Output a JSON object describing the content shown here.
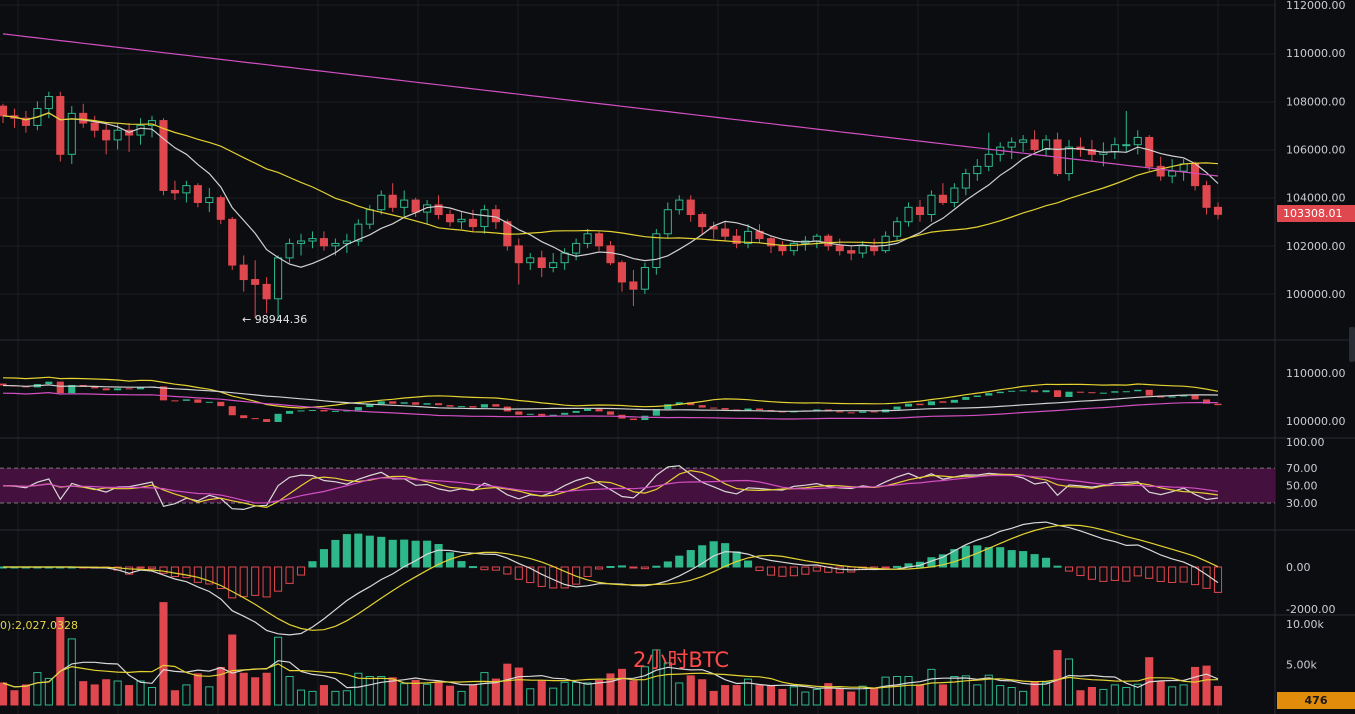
{
  "chart_data": {
    "type": "candlestick",
    "timeframe_watermark": "2小时BTC",
    "low_marker": "← 98944.36",
    "last_price": "103308.01",
    "volume_legend": "0):2,027.0328",
    "volume_last": "476",
    "price_axis": [
      "112000.00",
      "110000.00",
      "108000.00",
      "106000.00",
      "104000.00",
      "102000.00",
      "100000.00"
    ],
    "overlay_axis": [
      "110000.00",
      "100000.00"
    ],
    "rsi_axis": [
      "100.00",
      "70.00",
      "50.00",
      "30.00"
    ],
    "macd_axis": [
      "0.00",
      "-2000.00"
    ],
    "volume_axis": [
      "10.00k",
      "5.00k"
    ],
    "colors": {
      "up": "#2eb88a",
      "down": "#e0484f",
      "ma_fast": "#d0d0d0",
      "ma_mid": "#e3d232",
      "ma_slow": "#d14fc2",
      "rsi_band": "#4a1142"
    },
    "candles_ohlc": [
      [
        107800,
        107900,
        107100,
        107400
      ],
      [
        107400,
        107700,
        106900,
        107300
      ],
      [
        107300,
        107600,
        106700,
        107000
      ],
      [
        107000,
        108000,
        106800,
        107700
      ],
      [
        107700,
        108400,
        107300,
        108200
      ],
      [
        108200,
        108400,
        105500,
        105800
      ],
      [
        105800,
        107800,
        105400,
        107500
      ],
      [
        107500,
        107900,
        106900,
        107100
      ],
      [
        107100,
        107400,
        106500,
        106800
      ],
      [
        106800,
        107100,
        105800,
        106400
      ],
      [
        106400,
        107100,
        106000,
        106800
      ],
      [
        106800,
        107100,
        105900,
        106600
      ],
      [
        106600,
        107300,
        106200,
        107000
      ],
      [
        107000,
        107400,
        106500,
        107200
      ],
      [
        107200,
        107300,
        104100,
        104300
      ],
      [
        104300,
        104700,
        103900,
        104200
      ],
      [
        104200,
        104700,
        103800,
        104500
      ],
      [
        104500,
        104600,
        103600,
        103800
      ],
      [
        103800,
        104400,
        103400,
        104000
      ],
      [
        104000,
        104100,
        102900,
        103100
      ],
      [
        103100,
        103200,
        101000,
        101200
      ],
      [
        101200,
        101600,
        100100,
        100600
      ],
      [
        100600,
        101400,
        99000,
        100400
      ],
      [
        100400,
        100700,
        99200,
        99800
      ],
      [
        99800,
        101600,
        98944,
        101500
      ],
      [
        101500,
        102300,
        101300,
        102100
      ],
      [
        102100,
        102500,
        101600,
        102200
      ],
      [
        102200,
        102600,
        101900,
        102300
      ],
      [
        102300,
        102600,
        101800,
        102000
      ],
      [
        102000,
        102300,
        101600,
        102100
      ],
      [
        102100,
        102500,
        101700,
        102200
      ],
      [
        102200,
        103100,
        102000,
        102900
      ],
      [
        102900,
        103700,
        102700,
        103500
      ],
      [
        103500,
        104300,
        103300,
        104100
      ],
      [
        104100,
        104600,
        103400,
        103600
      ],
      [
        103600,
        104300,
        103200,
        103900
      ],
      [
        103900,
        104000,
        103200,
        103400
      ],
      [
        103400,
        103900,
        102900,
        103700
      ],
      [
        103700,
        104100,
        103100,
        103300
      ],
      [
        103300,
        103500,
        102800,
        103000
      ],
      [
        103000,
        103400,
        102700,
        103100
      ],
      [
        103100,
        103500,
        102600,
        102800
      ],
      [
        102800,
        103700,
        102500,
        103500
      ],
      [
        103500,
        103700,
        102700,
        103000
      ],
      [
        103000,
        103100,
        101800,
        102000
      ],
      [
        102000,
        102300,
        100400,
        101300
      ],
      [
        101300,
        101700,
        101000,
        101500
      ],
      [
        101500,
        101800,
        100700,
        101100
      ],
      [
        101100,
        101700,
        100900,
        101300
      ],
      [
        101300,
        101900,
        101000,
        101700
      ],
      [
        101700,
        102300,
        101400,
        102100
      ],
      [
        102100,
        102700,
        101900,
        102500
      ],
      [
        102500,
        102600,
        101800,
        102000
      ],
      [
        102000,
        102200,
        101200,
        101300
      ],
      [
        101300,
        101400,
        100100,
        100500
      ],
      [
        100500,
        101000,
        99500,
        100200
      ],
      [
        100200,
        101300,
        100000,
        101100
      ],
      [
        101100,
        102700,
        100800,
        102500
      ],
      [
        102500,
        103800,
        102300,
        103500
      ],
      [
        103500,
        104100,
        103300,
        103900
      ],
      [
        103900,
        104100,
        103000,
        103300
      ],
      [
        103300,
        103400,
        102500,
        102800
      ],
      [
        102800,
        103000,
        102300,
        102700
      ],
      [
        102700,
        103000,
        102200,
        102400
      ],
      [
        102400,
        102700,
        101900,
        102100
      ],
      [
        102100,
        102900,
        101900,
        102600
      ],
      [
        102600,
        102900,
        102100,
        102300
      ],
      [
        102300,
        102400,
        101700,
        102000
      ],
      [
        102000,
        102200,
        101600,
        101800
      ],
      [
        101800,
        102200,
        101600,
        102100
      ],
      [
        102100,
        102400,
        101800,
        102200
      ],
      [
        102200,
        102500,
        101900,
        102400
      ],
      [
        102400,
        102500,
        101800,
        102000
      ],
      [
        102000,
        102300,
        101600,
        101800
      ],
      [
        101800,
        102000,
        101400,
        101700
      ],
      [
        101700,
        102200,
        101500,
        102000
      ],
      [
        102000,
        102300,
        101600,
        101800
      ],
      [
        101800,
        102600,
        101700,
        102400
      ],
      [
        102400,
        103200,
        102200,
        103000
      ],
      [
        103000,
        103800,
        102800,
        103600
      ],
      [
        103600,
        103900,
        103000,
        103300
      ],
      [
        103300,
        104300,
        103000,
        104100
      ],
      [
        104100,
        104600,
        103700,
        103800
      ],
      [
        103800,
        104600,
        103600,
        104400
      ],
      [
        104400,
        105200,
        104100,
        105000
      ],
      [
        105000,
        105600,
        104700,
        105300
      ],
      [
        105300,
        106700,
        105100,
        105800
      ],
      [
        105800,
        106300,
        105500,
        106100
      ],
      [
        106100,
        106500,
        105600,
        106300
      ],
      [
        106300,
        106600,
        105900,
        106400
      ],
      [
        106400,
        106800,
        105900,
        106000
      ],
      [
        106000,
        106600,
        105700,
        106400
      ],
      [
        106400,
        106700,
        104900,
        105000
      ],
      [
        105000,
        106400,
        104700,
        106100
      ],
      [
        106100,
        106500,
        105700,
        106000
      ],
      [
        106000,
        106400,
        105500,
        105800
      ],
      [
        105800,
        106300,
        105300,
        105900
      ],
      [
        105900,
        106500,
        105600,
        106200
      ],
      [
        106200,
        107600,
        105900,
        106200
      ],
      [
        106200,
        106800,
        105800,
        106500
      ],
      [
        106500,
        106600,
        105100,
        105300
      ],
      [
        105300,
        105700,
        104700,
        104900
      ],
      [
        104900,
        105600,
        104600,
        105100
      ],
      [
        105100,
        105600,
        104700,
        105400
      ],
      [
        105400,
        105500,
        104300,
        104500
      ],
      [
        104500,
        104700,
        103300,
        103600
      ],
      [
        103600,
        103800,
        103100,
        103308
      ]
    ]
  }
}
